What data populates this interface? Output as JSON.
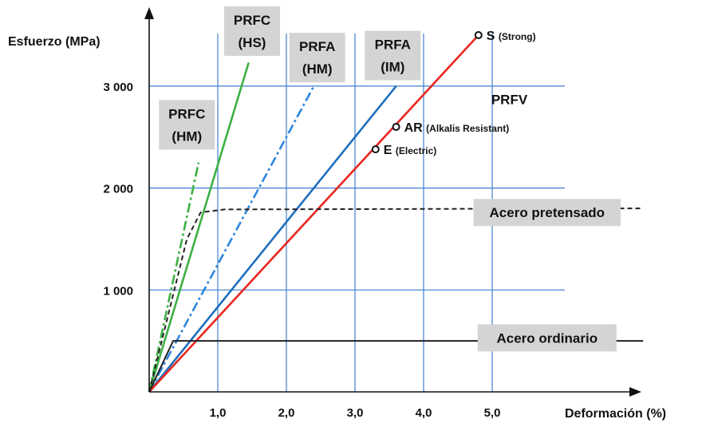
{
  "chart_data": {
    "type": "line",
    "ylabel": "Esfuerzo (MPa)",
    "xlabel": "Deformación (%)",
    "xlim": [
      0,
      7.2
    ],
    "ylim": [
      0,
      3800
    ],
    "x_ticks": [
      {
        "value": 1.0,
        "label": "1,0"
      },
      {
        "value": 2.0,
        "label": "2,0"
      },
      {
        "value": 3.0,
        "label": "3,0"
      },
      {
        "value": 4.0,
        "label": "4,0"
      },
      {
        "value": 5.0,
        "label": "5,0"
      }
    ],
    "y_ticks": [
      {
        "value": 1000,
        "label": "1 000"
      },
      {
        "value": 2000,
        "label": "2 000"
      },
      {
        "value": 3000,
        "label": "3 000"
      }
    ],
    "grid": true,
    "series": [
      {
        "name": "PRFC (HS)",
        "color": "#3cb043",
        "dash": "solid",
        "points": [
          [
            0,
            0
          ],
          [
            1.45,
            3230
          ]
        ]
      },
      {
        "name": "PRFC (HM)",
        "color": "#3cb043",
        "dash": "dashdot",
        "points": [
          [
            0,
            0
          ],
          [
            0.72,
            2250
          ]
        ]
      },
      {
        "name": "PRFA (HM)",
        "color": "#2e86de",
        "dash": "dashdot",
        "points": [
          [
            0,
            0
          ],
          [
            2.4,
            3000
          ]
        ]
      },
      {
        "name": "PRFA (IM)",
        "color": "#1f6fbf",
        "dash": "solid",
        "points": [
          [
            0,
            0
          ],
          [
            3.6,
            3000
          ]
        ]
      },
      {
        "name": "PRFV",
        "color": "#e8261f",
        "dash": "solid",
        "points": [
          [
            0,
            0
          ],
          [
            4.8,
            3500
          ]
        ]
      },
      {
        "name": "Acero pretensado",
        "color": "#222222",
        "dash": "dashed",
        "points": [
          [
            0,
            0
          ],
          [
            0.55,
            1500
          ],
          [
            0.75,
            1760
          ],
          [
            1.1,
            1790
          ],
          [
            7.2,
            1800
          ]
        ]
      },
      {
        "name": "Acero ordinario",
        "color": "#222222",
        "dash": "solid",
        "points": [
          [
            0,
            0
          ],
          [
            0.35,
            500
          ],
          [
            7.2,
            500
          ]
        ]
      }
    ],
    "markers": [
      {
        "label": "S",
        "note": "(Strong)",
        "x": 4.8,
        "y": 3500
      },
      {
        "label": "AR",
        "note": "(Alkalis Resistant)",
        "x": 3.6,
        "y": 2600
      },
      {
        "label": "E",
        "note": "(Electric)",
        "x": 3.3,
        "y": 2380
      }
    ],
    "annotations": [
      {
        "lines": [
          "PRFC",
          "(HS)"
        ],
        "x": 1.5,
        "y": 3540,
        "boxed": true
      },
      {
        "lines": [
          "PRFA",
          "(HM)"
        ],
        "x": 2.45,
        "y": 3280,
        "boxed": true
      },
      {
        "lines": [
          "PRFA",
          "(IM)"
        ],
        "x": 3.55,
        "y": 3300,
        "boxed": true
      },
      {
        "lines": [
          "PRFC",
          "(HM)"
        ],
        "x": 0.55,
        "y": 2620,
        "boxed": true
      },
      {
        "lines": [
          "PRFV"
        ],
        "x": 5.25,
        "y": 2870,
        "boxed": false
      },
      {
        "lines": [
          "Acero pretensado"
        ],
        "x": 5.8,
        "y": 1760,
        "boxed": true
      },
      {
        "lines": [
          "Acero ordinario"
        ],
        "x": 5.8,
        "y": 530,
        "boxed": true
      }
    ],
    "colors": {
      "grid": "#3f7fd0",
      "axis": "#111111",
      "label_box": "#d4d4d4"
    }
  }
}
